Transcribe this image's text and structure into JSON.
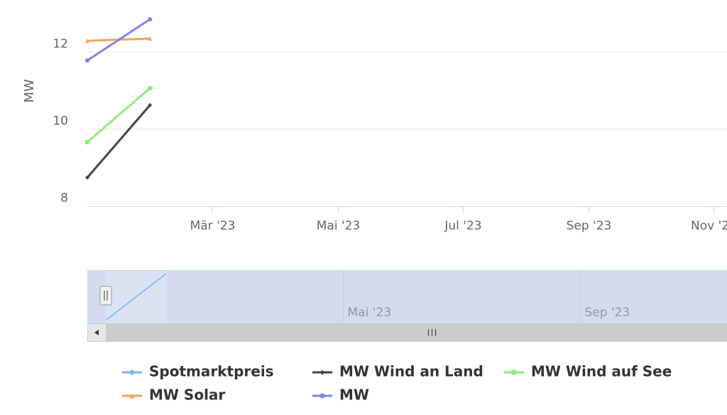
{
  "chart_data": {
    "type": "line",
    "y_axis_label": "MW",
    "x": [
      "2023-01",
      "2023-02"
    ],
    "xlim": [
      "2023-01",
      "2023-11"
    ],
    "xticks": [
      {
        "value": "2023-03",
        "label": "Mär '23"
      },
      {
        "value": "2023-05",
        "label": "Mai '23"
      },
      {
        "value": "2023-07",
        "label": "Jul '23"
      },
      {
        "value": "2023-09",
        "label": "Sep '23"
      },
      {
        "value": "2023-11",
        "label": "Nov '23"
      }
    ],
    "ylim": [
      8,
      13.35
    ],
    "yticks": [
      8,
      10,
      12
    ],
    "grid": true,
    "series": [
      {
        "name": "Spotmarktpreis",
        "color": "#7cb5ec",
        "marker": "circle",
        "values": [
          null,
          null
        ]
      },
      {
        "name": "MW Wind an Land",
        "color": "#434348",
        "marker": "diamond",
        "values": [
          8.74,
          10.62
        ]
      },
      {
        "name": "MW Wind auf See",
        "color": "#90ed7d",
        "marker": "square",
        "values": [
          9.66,
          11.06
        ]
      },
      {
        "name": "MW Solar",
        "color": "#f7a35c",
        "marker": "triangle",
        "values": [
          12.29,
          12.35
        ]
      },
      {
        "name": "MW",
        "color": "#8085e9",
        "marker": "circle",
        "values": [
          11.78,
          12.85
        ]
      }
    ],
    "navigator": {
      "xticks": [
        {
          "value": "2023-05",
          "label": "Mai '23"
        },
        {
          "value": "2023-09",
          "label": "Sep '23"
        }
      ]
    }
  }
}
